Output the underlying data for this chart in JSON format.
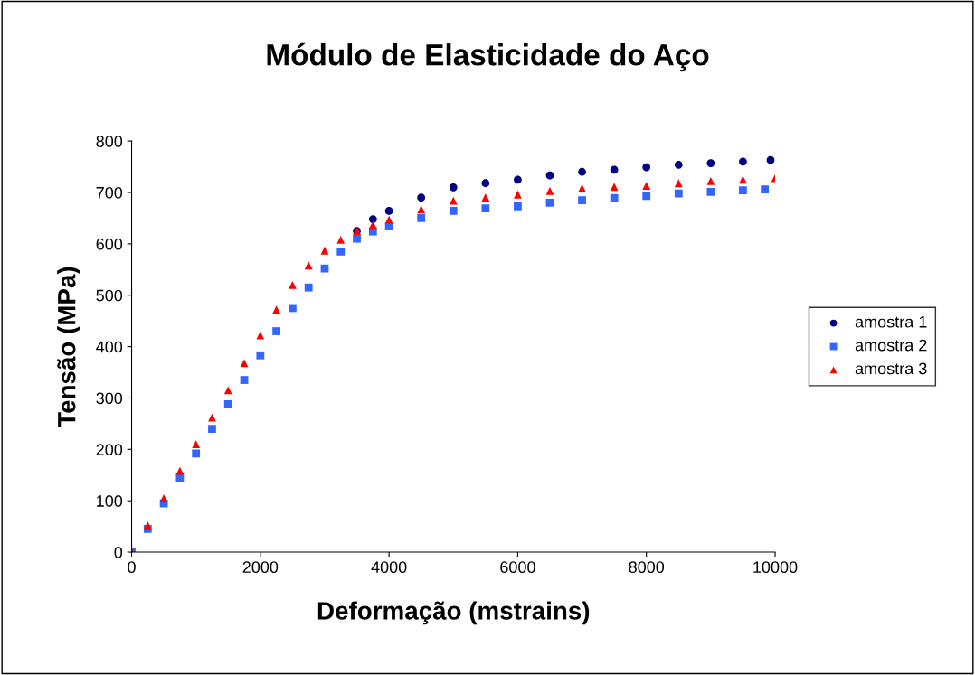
{
  "chart_data": {
    "type": "scatter",
    "title": "Módulo de Elasticidade do Aço",
    "xlabel": "Deformação (mstrains)",
    "ylabel": "Tensão (MPa)",
    "xlim": [
      0,
      10000
    ],
    "xticks": [
      0,
      2000,
      4000,
      6000,
      8000,
      10000
    ],
    "ylim": [
      0,
      800
    ],
    "yticks": [
      0,
      100,
      200,
      300,
      400,
      500,
      600,
      700,
      800
    ],
    "grid": false,
    "legend": "right",
    "series": [
      {
        "name": "amostra 1",
        "color": "#000080",
        "marker": "circle",
        "x": [
          3500,
          3750,
          4000,
          4500,
          5000,
          5500,
          6000,
          6500,
          7000,
          7500,
          8000,
          8500,
          9000,
          9500,
          9930
        ],
        "values": [
          625,
          648,
          664,
          690,
          710,
          718,
          725,
          733,
          740,
          744,
          749,
          754,
          757,
          760,
          763
        ]
      },
      {
        "name": "amostra 2",
        "color": "#3366ff",
        "marker": "square",
        "x": [
          0,
          250,
          500,
          750,
          1000,
          1250,
          1500,
          1750,
          2000,
          2250,
          2500,
          2750,
          3000,
          3250,
          3500,
          3750,
          4000,
          4500,
          5000,
          5500,
          6000,
          6500,
          7000,
          7500,
          8000,
          8500,
          9000,
          9500,
          9840
        ],
        "values": [
          0,
          45,
          95,
          145,
          192,
          240,
          288,
          335,
          383,
          430,
          475,
          515,
          552,
          585,
          610,
          624,
          634,
          650,
          664,
          669,
          673,
          680,
          685,
          689,
          693,
          698,
          701,
          704,
          706
        ]
      },
      {
        "name": "amostra 3",
        "color": "#ff0000",
        "marker": "triangle",
        "x": [
          0,
          250,
          500,
          750,
          1000,
          1250,
          1500,
          1750,
          2000,
          2250,
          2500,
          2750,
          3000,
          3250,
          3500,
          3750,
          4000,
          4500,
          5000,
          5500,
          6000,
          6500,
          7000,
          7500,
          8000,
          8500,
          9000,
          9500,
          10000
        ],
        "values": [
          0,
          52,
          105,
          158,
          210,
          262,
          315,
          368,
          422,
          472,
          520,
          558,
          587,
          608,
          625,
          637,
          647,
          667,
          684,
          690,
          696,
          703,
          708,
          711,
          713,
          718,
          722,
          725,
          728
        ]
      }
    ]
  }
}
